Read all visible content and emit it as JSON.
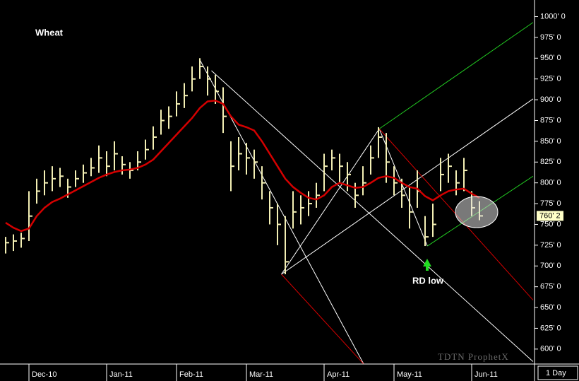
{
  "chart_data": {
    "type": "ohlc",
    "title": "Wheat",
    "annotation": "RD low",
    "watermark": "TDTN ProphetX",
    "interval": "1 Day",
    "categories": [
      null,
      null,
      null,
      "Dec-10",
      null,
      null,
      null,
      null,
      null,
      null,
      null,
      null,
      null,
      "Jan-11",
      null,
      null,
      null,
      null,
      null,
      null,
      null,
      null,
      "Feb-11",
      null,
      null,
      null,
      null,
      null,
      null,
      null,
      null,
      "Mar-11",
      null,
      null,
      null,
      null,
      null,
      null,
      null,
      null,
      null,
      "Apr-11",
      null,
      null,
      null,
      null,
      null,
      null,
      null,
      null,
      "May-11",
      null,
      null,
      null,
      null,
      null,
      null,
      null,
      null,
      null,
      "Jun-11",
      null
    ],
    "color": "#f3efb4",
    "high": [
      735,
      738,
      740,
      790,
      805,
      815,
      820,
      818,
      805,
      815,
      822,
      830,
      845,
      838,
      850,
      832,
      825,
      838,
      852,
      868,
      888,
      892,
      910,
      920,
      940,
      950,
      940,
      930,
      915,
      850,
      855,
      848,
      840,
      820,
      790,
      775,
      760,
      790,
      785,
      790,
      800,
      835,
      840,
      835,
      825,
      800,
      820,
      845,
      867,
      860,
      820,
      805,
      795,
      815,
      760,
      775,
      830,
      835,
      815,
      830,
      790,
      778
    ],
    "low": [
      715,
      718,
      722,
      730,
      775,
      785,
      790,
      795,
      782,
      795,
      800,
      808,
      812,
      808,
      815,
      810,
      805,
      815,
      828,
      840,
      858,
      865,
      880,
      890,
      910,
      925,
      905,
      895,
      860,
      790,
      815,
      810,
      805,
      780,
      750,
      725,
      690,
      745,
      750,
      760,
      770,
      790,
      815,
      800,
      790,
      770,
      785,
      810,
      830,
      800,
      785,
      770,
      745,
      770,
      724,
      735,
      790,
      800,
      785,
      790,
      760,
      755
    ],
    "close": [
      728,
      730,
      733,
      760,
      790,
      800,
      805,
      808,
      795,
      805,
      812,
      818,
      830,
      820,
      835,
      822,
      815,
      825,
      840,
      855,
      875,
      880,
      895,
      905,
      925,
      940,
      925,
      910,
      880,
      820,
      835,
      830,
      825,
      800,
      770,
      750,
      705,
      765,
      770,
      775,
      785,
      820,
      830,
      820,
      810,
      785,
      800,
      830,
      855,
      825,
      800,
      785,
      765,
      790,
      735,
      750,
      810,
      820,
      800,
      815,
      770,
      760.25
    ],
    "last_price": {
      "value": 760.25,
      "label": "760' 2"
    },
    "moving_average": {
      "color": "#d40000",
      "values": [
        752,
        746,
        742,
        745,
        760,
        770,
        777,
        781,
        786,
        791,
        796,
        801,
        806,
        810,
        813,
        815,
        816,
        818,
        822,
        828,
        838,
        848,
        858,
        868,
        878,
        890,
        898,
        899,
        895,
        880,
        870,
        867,
        863,
        850,
        835,
        820,
        805,
        795,
        788,
        782,
        780,
        785,
        795,
        800,
        797,
        794,
        795,
        800,
        806,
        808,
        806,
        800,
        795,
        793,
        784,
        779,
        785,
        790,
        792,
        793,
        787,
        782
      ]
    },
    "trendlines": [
      {
        "color": "#ffffff",
        "points": [
          [
            25,
            948
          ],
          [
            46.1,
            582
          ]
        ]
      },
      {
        "color": "#ffffff",
        "points": [
          [
            26.5,
            935
          ],
          [
            67.9,
            585
          ]
        ]
      },
      {
        "color": "#d40000",
        "points": [
          [
            35.5,
            690
          ],
          [
            46.1,
            582
          ]
        ]
      },
      {
        "color": "#ffffff",
        "points": [
          [
            35.5,
            690
          ],
          [
            67.9,
            901
          ]
        ]
      },
      {
        "color": "#ffffff",
        "points": [
          [
            35.5,
            690
          ],
          [
            48.1,
            865
          ]
        ]
      },
      {
        "color": "#ffffff",
        "points": [
          [
            48.1,
            865
          ],
          [
            54.3,
            724
          ]
        ]
      },
      {
        "color": "#22cc22",
        "points": [
          [
            48.1,
            865
          ],
          [
            67.9,
            993
          ]
        ]
      },
      {
        "color": "#d40000",
        "points": [
          [
            48.1,
            865
          ],
          [
            67.9,
            659
          ]
        ]
      },
      {
        "color": "#22cc22",
        "points": [
          [
            54.3,
            724
          ],
          [
            67.9,
            808
          ]
        ]
      }
    ],
    "ylim": [
      582,
      1020
    ],
    "yticks": [
      {
        "value": 600,
        "label": "600' 0"
      },
      {
        "value": 625,
        "label": "625' 0"
      },
      {
        "value": 650,
        "label": "650' 0"
      },
      {
        "value": 675,
        "label": "675' 0"
      },
      {
        "value": 700,
        "label": "700' 0"
      },
      {
        "value": 725,
        "label": "725' 0"
      },
      {
        "value": 750,
        "label": "750' 0"
      },
      {
        "value": 775,
        "label": "775' 0"
      },
      {
        "value": 800,
        "label": "800' 0"
      },
      {
        "value": 825,
        "label": "825' 0"
      },
      {
        "value": 850,
        "label": "850' 0"
      },
      {
        "value": 875,
        "label": "875' 0"
      },
      {
        "value": 900,
        "label": "900' 0"
      },
      {
        "value": 925,
        "label": "925' 0"
      },
      {
        "value": 950,
        "label": "950' 0"
      },
      {
        "value": 975,
        "label": "975' 0"
      },
      {
        "value": 1000,
        "label": "1000' 0"
      }
    ]
  }
}
